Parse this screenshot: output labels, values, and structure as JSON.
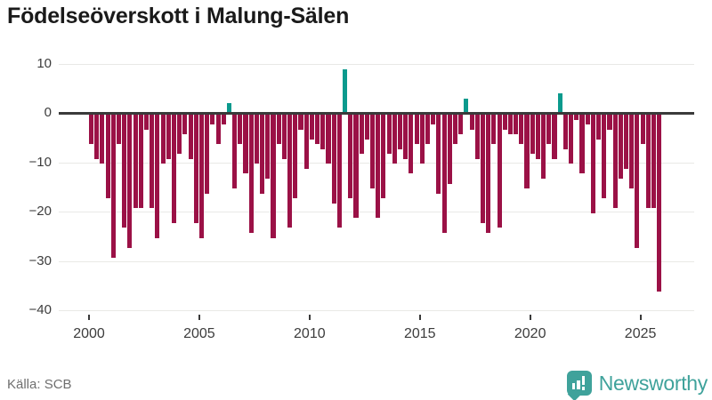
{
  "title": "Födelseöverskott i Malung-Sälen",
  "source": "Källa: SCB",
  "brand": {
    "name": "Newsworthy",
    "color": "#3fa29b"
  },
  "colors": {
    "negative_bar": "#9b1146",
    "positive_bar": "#0b9a8d",
    "gridline": "#e9e9e6",
    "zero_line": "#3a3a3a",
    "axis_text": "#3c3c3c",
    "title_text": "#1a1a1a",
    "source_text": "#6f6f6f",
    "background": "#ffffff"
  },
  "chart_data": {
    "type": "bar",
    "title": "Födelseöverskott i Malung-Sälen",
    "xlabel": "",
    "ylabel": "",
    "x_unit": "quarter",
    "grid": true,
    "legend": false,
    "ylim": [
      -40,
      10
    ],
    "yticks": [
      10,
      0,
      -10,
      -20,
      -30,
      -40
    ],
    "xticks": [
      "2000",
      "2005",
      "2010",
      "2015",
      "2020",
      "2025"
    ],
    "categories": [
      "2000 Q1",
      "2000 Q2",
      "2000 Q3",
      "2000 Q4",
      "2001 Q1",
      "2001 Q2",
      "2001 Q3",
      "2001 Q4",
      "2002 Q1",
      "2002 Q2",
      "2002 Q3",
      "2002 Q4",
      "2003 Q1",
      "2003 Q2",
      "2003 Q3",
      "2003 Q4",
      "2004 Q1",
      "2004 Q2",
      "2004 Q3",
      "2004 Q4",
      "2005 Q1",
      "2005 Q2",
      "2005 Q3",
      "2005 Q4",
      "2006 Q1",
      "2006 Q2",
      "2006 Q3",
      "2006 Q4",
      "2007 Q1",
      "2007 Q2",
      "2007 Q3",
      "2007 Q4",
      "2008 Q1",
      "2008 Q2",
      "2008 Q3",
      "2008 Q4",
      "2009 Q1",
      "2009 Q2",
      "2009 Q3",
      "2009 Q4",
      "2010 Q1",
      "2010 Q2",
      "2010 Q3",
      "2010 Q4",
      "2011 Q1",
      "2011 Q2",
      "2011 Q3",
      "2011 Q4",
      "2012 Q1",
      "2012 Q2",
      "2012 Q3",
      "2012 Q4",
      "2013 Q1",
      "2013 Q2",
      "2013 Q3",
      "2013 Q4",
      "2014 Q1",
      "2014 Q2",
      "2014 Q3",
      "2014 Q4",
      "2015 Q1",
      "2015 Q2",
      "2015 Q3",
      "2015 Q4",
      "2016 Q1",
      "2016 Q2",
      "2016 Q3",
      "2016 Q4",
      "2017 Q1",
      "2017 Q2",
      "2017 Q3",
      "2017 Q4",
      "2018 Q1",
      "2018 Q2",
      "2018 Q3",
      "2018 Q4",
      "2019 Q1",
      "2019 Q2",
      "2019 Q3",
      "2019 Q4",
      "2020 Q1",
      "2020 Q2",
      "2020 Q3",
      "2020 Q4",
      "2021 Q1",
      "2021 Q2",
      "2021 Q3",
      "2021 Q4",
      "2022 Q1",
      "2022 Q2",
      "2022 Q3",
      "2022 Q4",
      "2023 Q1",
      "2023 Q2",
      "2023 Q3",
      "2023 Q4",
      "2024 Q1",
      "2024 Q2",
      "2024 Q3",
      "2024 Q4",
      "2025 Q1",
      "2025 Q2",
      "2025 Q3",
      "2025 Q4"
    ],
    "values": [
      -6,
      -9,
      -10,
      -17,
      -29,
      -6,
      -23,
      -27,
      -19,
      -19,
      -3,
      -19,
      -25,
      -10,
      -9,
      -22,
      -8,
      -4,
      -9,
      -22,
      -25,
      -16,
      -2,
      -6,
      -2,
      2,
      -15,
      -6,
      -12,
      -24,
      -10,
      -16,
      -13,
      -25,
      -6,
      -9,
      -23,
      -17,
      -3,
      -11,
      -5,
      -6,
      -7,
      -10,
      -18,
      -23,
      9,
      -17,
      -21,
      -8,
      -5,
      -15,
      -21,
      -17,
      -8,
      -10,
      -7,
      -9,
      -12,
      -6,
      -10,
      -6,
      -2,
      -16,
      -24,
      -14,
      -6,
      -4,
      3,
      -3,
      -9,
      -22,
      -24,
      -6,
      -23,
      -3,
      -4,
      -4,
      -6,
      -15,
      -8,
      -9,
      -13,
      -6,
      -9,
      4,
      -7,
      -10,
      -1,
      -12,
      -2,
      -20,
      -5,
      -17,
      -3,
      -19,
      -13,
      -11,
      -15,
      -27,
      -6,
      -19,
      -19,
      -36
    ]
  }
}
